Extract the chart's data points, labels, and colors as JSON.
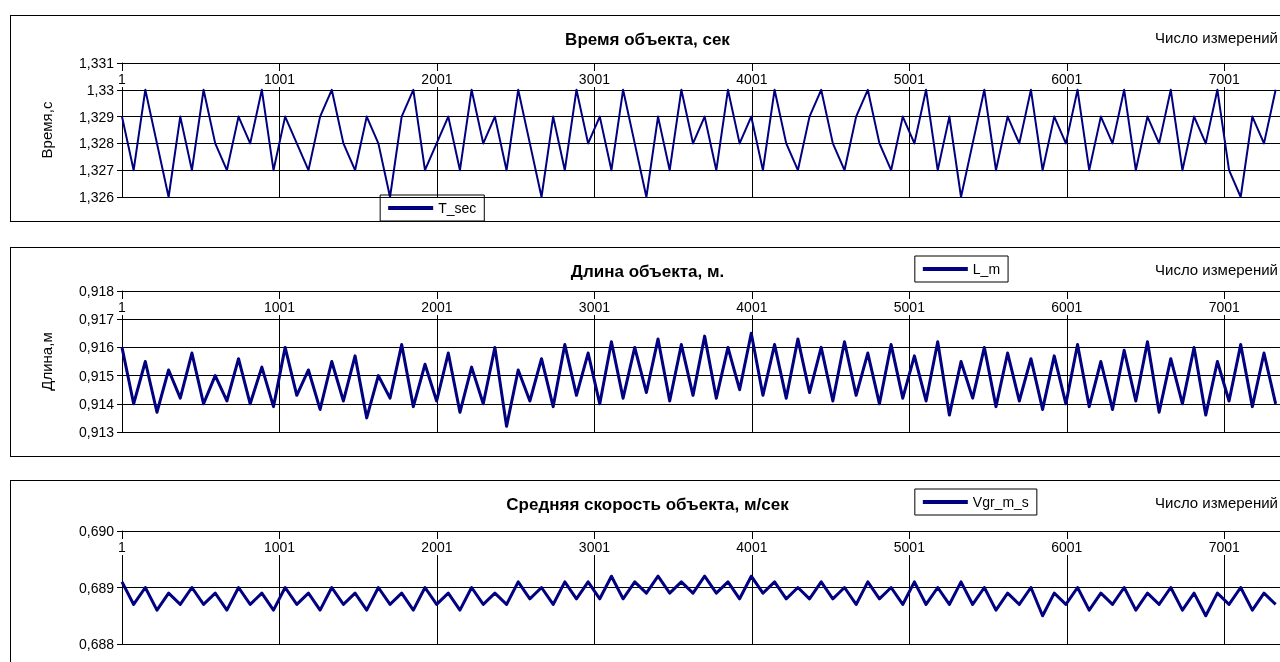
{
  "chart_data": [
    {
      "type": "line",
      "title": "Время объекта, сек",
      "xlabel": "Число измерений",
      "ylabel": "Время,с",
      "x": [
        1,
        75,
        149,
        223,
        297,
        371,
        445,
        519,
        593,
        667,
        741,
        815,
        889,
        963,
        1037,
        1111,
        1185,
        1259,
        1333,
        1407,
        1481,
        1555,
        1629,
        1703,
        1777,
        1851,
        1925,
        1999,
        2073,
        2147,
        2221,
        2295,
        2369,
        2443,
        2517,
        2591,
        2665,
        2739,
        2813,
        2887,
        2961,
        3035,
        3109,
        3183,
        3257,
        3331,
        3405,
        3479,
        3553,
        3627,
        3701,
        3775,
        3849,
        3923,
        3997,
        4071,
        4145,
        4219,
        4293,
        4367,
        4441,
        4515,
        4589,
        4663,
        4737,
        4811,
        4885,
        4959,
        5033,
        5107,
        5181,
        5255,
        5329,
        5403,
        5477,
        5551,
        5625,
        5699,
        5773,
        5847,
        5921,
        5995,
        6069,
        6143,
        6217,
        6291,
        6365,
        6439,
        6513,
        6587,
        6661,
        6735,
        6809,
        6883,
        6957,
        7031,
        7105,
        7179,
        7253,
        7327
      ],
      "series": [
        {
          "name": "T_sec",
          "color": "#000080",
          "values": [
            1.329,
            1.327,
            1.33,
            1.328,
            1.326,
            1.329,
            1.327,
            1.33,
            1.328,
            1.327,
            1.329,
            1.328,
            1.33,
            1.327,
            1.329,
            1.328,
            1.327,
            1.329,
            1.33,
            1.328,
            1.327,
            1.329,
            1.328,
            1.326,
            1.329,
            1.33,
            1.327,
            1.328,
            1.329,
            1.327,
            1.33,
            1.328,
            1.329,
            1.327,
            1.33,
            1.328,
            1.326,
            1.329,
            1.327,
            1.33,
            1.328,
            1.329,
            1.327,
            1.33,
            1.328,
            1.326,
            1.329,
            1.327,
            1.33,
            1.328,
            1.329,
            1.327,
            1.33,
            1.328,
            1.329,
            1.327,
            1.33,
            1.328,
            1.327,
            1.329,
            1.33,
            1.328,
            1.327,
            1.329,
            1.33,
            1.328,
            1.327,
            1.329,
            1.328,
            1.33,
            1.327,
            1.329,
            1.326,
            1.328,
            1.33,
            1.327,
            1.329,
            1.328,
            1.33,
            1.327,
            1.329,
            1.328,
            1.33,
            1.327,
            1.329,
            1.328,
            1.33,
            1.327,
            1.329,
            1.328,
            1.33,
            1.327,
            1.329,
            1.328,
            1.33,
            1.327,
            1.326,
            1.329,
            1.328,
            1.33
          ]
        }
      ],
      "xlim": [
        1,
        7380
      ],
      "xticks": [
        1,
        1001,
        2001,
        3001,
        4001,
        5001,
        6001,
        7001
      ],
      "ylim": [
        1.326,
        1.331
      ],
      "yticks": [
        {
          "value": 1.326,
          "label": "1,326"
        },
        {
          "value": 1.327,
          "label": "1,327"
        },
        {
          "value": 1.328,
          "label": "1,328"
        },
        {
          "value": 1.329,
          "label": "1,329"
        },
        {
          "value": 1.33,
          "label": "1,33"
        },
        {
          "value": 1.331,
          "label": "1,331"
        }
      ],
      "grid": true,
      "legend": "bottom left"
    },
    {
      "type": "line",
      "title": "Длина объекта, м.",
      "xlabel": "Число измерений",
      "ylabel": "Длина,м",
      "x": [
        1,
        75,
        149,
        223,
        297,
        371,
        445,
        519,
        593,
        667,
        741,
        815,
        889,
        963,
        1037,
        1111,
        1185,
        1259,
        1333,
        1407,
        1481,
        1555,
        1629,
        1703,
        1777,
        1851,
        1925,
        1999,
        2073,
        2147,
        2221,
        2295,
        2369,
        2443,
        2517,
        2591,
        2665,
        2739,
        2813,
        2887,
        2961,
        3035,
        3109,
        3183,
        3257,
        3331,
        3405,
        3479,
        3553,
        3627,
        3701,
        3775,
        3849,
        3923,
        3997,
        4071,
        4145,
        4219,
        4293,
        4367,
        4441,
        4515,
        4589,
        4663,
        4737,
        4811,
        4885,
        4959,
        5033,
        5107,
        5181,
        5255,
        5329,
        5403,
        5477,
        5551,
        5625,
        5699,
        5773,
        5847,
        5921,
        5995,
        6069,
        6143,
        6217,
        6291,
        6365,
        6439,
        6513,
        6587,
        6661,
        6735,
        6809,
        6883,
        6957,
        7031,
        7105,
        7179,
        7253,
        7327
      ],
      "series": [
        {
          "name": "L_m",
          "color": "#000080",
          "values": [
            0.916,
            0.914,
            0.9155,
            0.9137,
            0.9152,
            0.9142,
            0.9158,
            0.914,
            0.915,
            0.9141,
            0.9156,
            0.914,
            0.9153,
            0.9139,
            0.916,
            0.9143,
            0.9152,
            0.9138,
            0.9155,
            0.9141,
            0.9157,
            0.9135,
            0.915,
            0.9142,
            0.9161,
            0.9139,
            0.9154,
            0.9141,
            0.9158,
            0.9137,
            0.9153,
            0.914,
            0.916,
            0.9132,
            0.9152,
            0.9141,
            0.9156,
            0.9139,
            0.9161,
            0.9143,
            0.9158,
            0.914,
            0.9162,
            0.9142,
            0.916,
            0.9144,
            0.9163,
            0.9141,
            0.9161,
            0.9143,
            0.9164,
            0.9142,
            0.916,
            0.9145,
            0.9165,
            0.9143,
            0.9161,
            0.9142,
            0.9163,
            0.9144,
            0.916,
            0.9141,
            0.9162,
            0.9143,
            0.9158,
            0.914,
            0.9161,
            0.9142,
            0.9157,
            0.9141,
            0.9162,
            0.9136,
            0.9155,
            0.9142,
            0.916,
            0.9139,
            0.9158,
            0.9141,
            0.9156,
            0.9138,
            0.9157,
            0.914,
            0.9161,
            0.9139,
            0.9155,
            0.9138,
            0.9159,
            0.9141,
            0.9162,
            0.9137,
            0.9156,
            0.914,
            0.916,
            0.9136,
            0.9155,
            0.9141,
            0.9161,
            0.9139,
            0.9158,
            0.914
          ]
        }
      ],
      "xlim": [
        1,
        7380
      ],
      "xticks": [
        1,
        1001,
        2001,
        3001,
        4001,
        5001,
        6001,
        7001
      ],
      "ylim": [
        0.913,
        0.918
      ],
      "yticks": [
        {
          "value": 0.913,
          "label": "0,913"
        },
        {
          "value": 0.914,
          "label": "0,914"
        },
        {
          "value": 0.915,
          "label": "0,915"
        },
        {
          "value": 0.916,
          "label": "0,916"
        },
        {
          "value": 0.917,
          "label": "0,917"
        },
        {
          "value": 0.918,
          "label": "0,918"
        }
      ],
      "grid": true,
      "legend": "top"
    },
    {
      "type": "line",
      "title": "Средняя скорость объекта, м/сек",
      "xlabel": "Число измерений",
      "x": [
        1,
        75,
        149,
        223,
        297,
        371,
        445,
        519,
        593,
        667,
        741,
        815,
        889,
        963,
        1037,
        1111,
        1185,
        1259,
        1333,
        1407,
        1481,
        1555,
        1629,
        1703,
        1777,
        1851,
        1925,
        1999,
        2073,
        2147,
        2221,
        2295,
        2369,
        2443,
        2517,
        2591,
        2665,
        2739,
        2813,
        2887,
        2961,
        3035,
        3109,
        3183,
        3257,
        3331,
        3405,
        3479,
        3553,
        3627,
        3701,
        3775,
        3849,
        3923,
        3997,
        4071,
        4145,
        4219,
        4293,
        4367,
        4441,
        4515,
        4589,
        4663,
        4737,
        4811,
        4885,
        4959,
        5033,
        5107,
        5181,
        5255,
        5329,
        5403,
        5477,
        5551,
        5625,
        5699,
        5773,
        5847,
        5921,
        5995,
        6069,
        6143,
        6217,
        6291,
        6365,
        6439,
        6513,
        6587,
        6661,
        6735,
        6809,
        6883,
        6957,
        7031,
        7105,
        7179,
        7253,
        7327
      ],
      "series": [
        {
          "name": "Vgr_m_s",
          "color": "#000080",
          "values": [
            0.6891,
            0.6887,
            0.689,
            0.6886,
            0.6889,
            0.6887,
            0.689,
            0.6887,
            0.6889,
            0.6886,
            0.689,
            0.6887,
            0.6889,
            0.6886,
            0.689,
            0.6887,
            0.6889,
            0.6886,
            0.689,
            0.6887,
            0.6889,
            0.6886,
            0.689,
            0.6887,
            0.6889,
            0.6886,
            0.689,
            0.6887,
            0.6889,
            0.6886,
            0.689,
            0.6887,
            0.6889,
            0.6887,
            0.6891,
            0.6888,
            0.689,
            0.6887,
            0.6891,
            0.6888,
            0.6891,
            0.6888,
            0.6892,
            0.6888,
            0.6891,
            0.6889,
            0.6892,
            0.6889,
            0.6891,
            0.6889,
            0.6892,
            0.6889,
            0.6891,
            0.6888,
            0.6892,
            0.6889,
            0.6891,
            0.6888,
            0.689,
            0.6888,
            0.6891,
            0.6888,
            0.689,
            0.6887,
            0.6891,
            0.6888,
            0.689,
            0.6887,
            0.6891,
            0.6887,
            0.689,
            0.6887,
            0.6891,
            0.6887,
            0.689,
            0.6886,
            0.6889,
            0.6887,
            0.689,
            0.6885,
            0.6889,
            0.6887,
            0.689,
            0.6886,
            0.6889,
            0.6887,
            0.689,
            0.6886,
            0.6889,
            0.6887,
            0.689,
            0.6886,
            0.6889,
            0.6885,
            0.6889,
            0.6887,
            0.689,
            0.6886,
            0.6889,
            0.6887
          ]
        }
      ],
      "xlim": [
        1,
        7380
      ],
      "xticks": [
        1,
        1001,
        2001,
        3001,
        4001,
        5001,
        6001,
        7001
      ],
      "ylim": [
        0.688,
        0.69
      ],
      "yticks": [
        {
          "value": 0.688,
          "label": "0,688"
        },
        {
          "value": 0.689,
          "label": "0,689"
        },
        {
          "value": 0.69,
          "label": "0,690"
        }
      ],
      "grid": true,
      "legend": "top"
    }
  ]
}
